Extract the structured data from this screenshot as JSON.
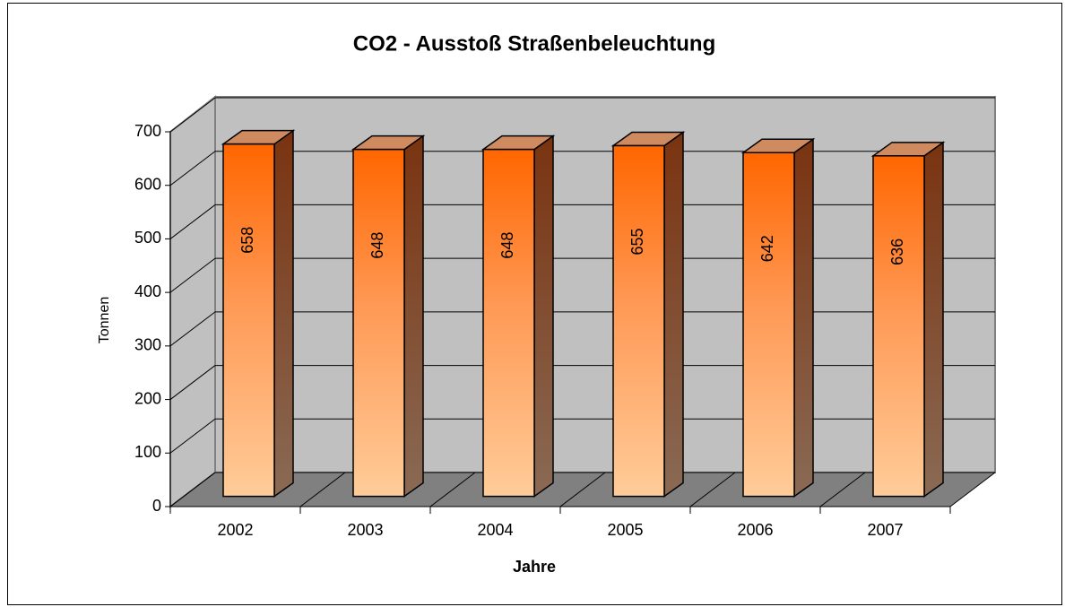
{
  "chart_data": {
    "type": "bar3d",
    "title": "CO2 - Ausstoß Straßenbeleuchtung",
    "categories": [
      "2002",
      "2003",
      "2004",
      "2005",
      "2006",
      "2007"
    ],
    "values": [
      658,
      648,
      648,
      655,
      642,
      636
    ],
    "x_label": "Jahre",
    "y_label": "Tonnen",
    "ylim": [
      0,
      700
    ],
    "yticks": [
      0,
      100,
      200,
      300,
      400,
      500,
      600,
      700
    ],
    "grid": true,
    "color": "#ff6600"
  }
}
